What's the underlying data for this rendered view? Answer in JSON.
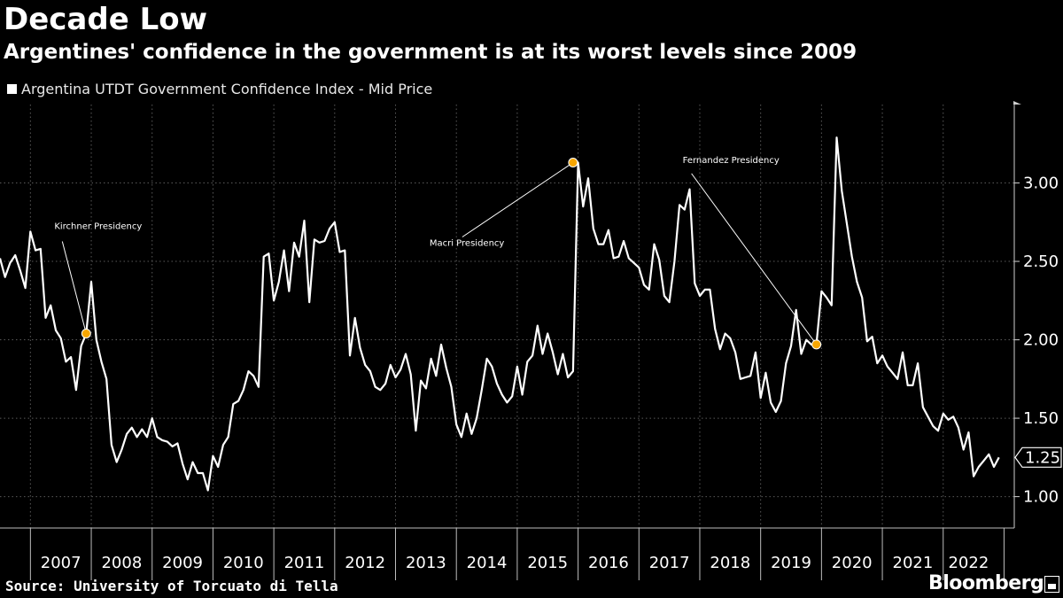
{
  "header": {
    "title": "Decade Low",
    "subtitle": "Argentines' confidence in the government is at its worst levels since 2009"
  },
  "legend": {
    "label": "Argentina UTDT Government Confidence Index - Mid Price"
  },
  "footer": {
    "source": "Source: University of Torcuato di Tella",
    "brand": "Bloomberg"
  },
  "colors": {
    "background": "#000000",
    "line": "#ffffff",
    "marker": "#f7a600",
    "grid": "#5a5a5a"
  },
  "chart_data": {
    "type": "line",
    "title": "Decade Low",
    "series": [
      {
        "name": "Argentina UTDT Government Confidence Index - Mid Price",
        "start": "2006-07",
        "frequency": "monthly",
        "values": [
          2.52,
          2.4,
          2.49,
          2.54,
          2.44,
          2.33,
          2.69,
          2.57,
          2.58,
          2.14,
          2.22,
          2.06,
          2.01,
          1.86,
          1.89,
          1.68,
          1.96,
          2.04,
          2.37,
          2.0,
          1.86,
          1.75,
          1.33,
          1.22,
          1.3,
          1.4,
          1.44,
          1.38,
          1.43,
          1.38,
          1.5,
          1.38,
          1.36,
          1.35,
          1.32,
          1.34,
          1.21,
          1.11,
          1.22,
          1.15,
          1.15,
          1.04,
          1.26,
          1.19,
          1.33,
          1.38,
          1.59,
          1.61,
          1.68,
          1.8,
          1.77,
          1.7,
          2.53,
          2.55,
          2.25,
          2.37,
          2.57,
          2.31,
          2.62,
          2.53,
          2.76,
          2.24,
          2.64,
          2.62,
          2.63,
          2.71,
          2.75,
          2.56,
          2.57,
          1.9,
          2.14,
          1.95,
          1.84,
          1.8,
          1.7,
          1.68,
          1.72,
          1.84,
          1.76,
          1.81,
          1.91,
          1.78,
          1.42,
          1.74,
          1.69,
          1.88,
          1.77,
          1.97,
          1.82,
          1.7,
          1.46,
          1.38,
          1.53,
          1.4,
          1.5,
          1.68,
          1.88,
          1.83,
          1.72,
          1.65,
          1.6,
          1.64,
          1.83,
          1.65,
          1.86,
          1.9,
          2.09,
          1.91,
          2.04,
          1.92,
          1.78,
          1.91,
          1.76,
          1.8,
          3.13,
          2.85,
          3.03,
          2.71,
          2.61,
          2.61,
          2.7,
          2.52,
          2.53,
          2.63,
          2.52,
          2.49,
          2.46,
          2.35,
          2.32,
          2.61,
          2.51,
          2.28,
          2.24,
          2.5,
          2.86,
          2.83,
          2.96,
          2.36,
          2.28,
          2.32,
          2.32,
          2.07,
          1.94,
          2.04,
          2.01,
          1.92,
          1.75,
          1.76,
          1.77,
          1.92,
          1.63,
          1.79,
          1.6,
          1.54,
          1.61,
          1.85,
          1.96,
          2.19,
          1.91,
          2.0,
          1.97,
          1.97,
          2.31,
          2.27,
          2.22,
          3.29,
          2.95,
          2.74,
          2.53,
          2.37,
          2.27,
          1.99,
          2.02,
          1.85,
          1.9,
          1.83,
          1.79,
          1.75,
          1.92,
          1.71,
          1.71,
          1.85,
          1.57,
          1.51,
          1.45,
          1.42,
          1.53,
          1.49,
          1.51,
          1.44,
          1.3,
          1.41,
          1.13,
          1.19,
          1.23,
          1.27,
          1.19,
          1.25
        ]
      }
    ],
    "x_labels": [
      "2007",
      "2008",
      "2009",
      "2010",
      "2011",
      "2012",
      "2013",
      "2014",
      "2015",
      "2016",
      "2017",
      "2018",
      "2019",
      "2020",
      "2021",
      "2022"
    ],
    "x_range": [
      "2006-07",
      "2022-11"
    ],
    "ylim": [
      0.8,
      3.5
    ],
    "y_ticks": [
      1.0,
      1.5,
      2.0,
      2.5,
      3.0
    ],
    "y_tick_labels": [
      "1.00",
      "1.50",
      "2.00",
      "2.50",
      "3.00"
    ],
    "last_value_label": "1.25",
    "annotations": [
      {
        "label": "Kirchner Presidency",
        "date": "2007-12",
        "value": 2.04
      },
      {
        "label": "Macri Presidency",
        "date": "2015-12",
        "value": 3.13
      },
      {
        "label": "Fernandez Presidency",
        "date": "2019-12",
        "value": 1.97
      }
    ],
    "xlabel": "",
    "ylabel": "",
    "grid": true,
    "legend_position": "top-left"
  }
}
